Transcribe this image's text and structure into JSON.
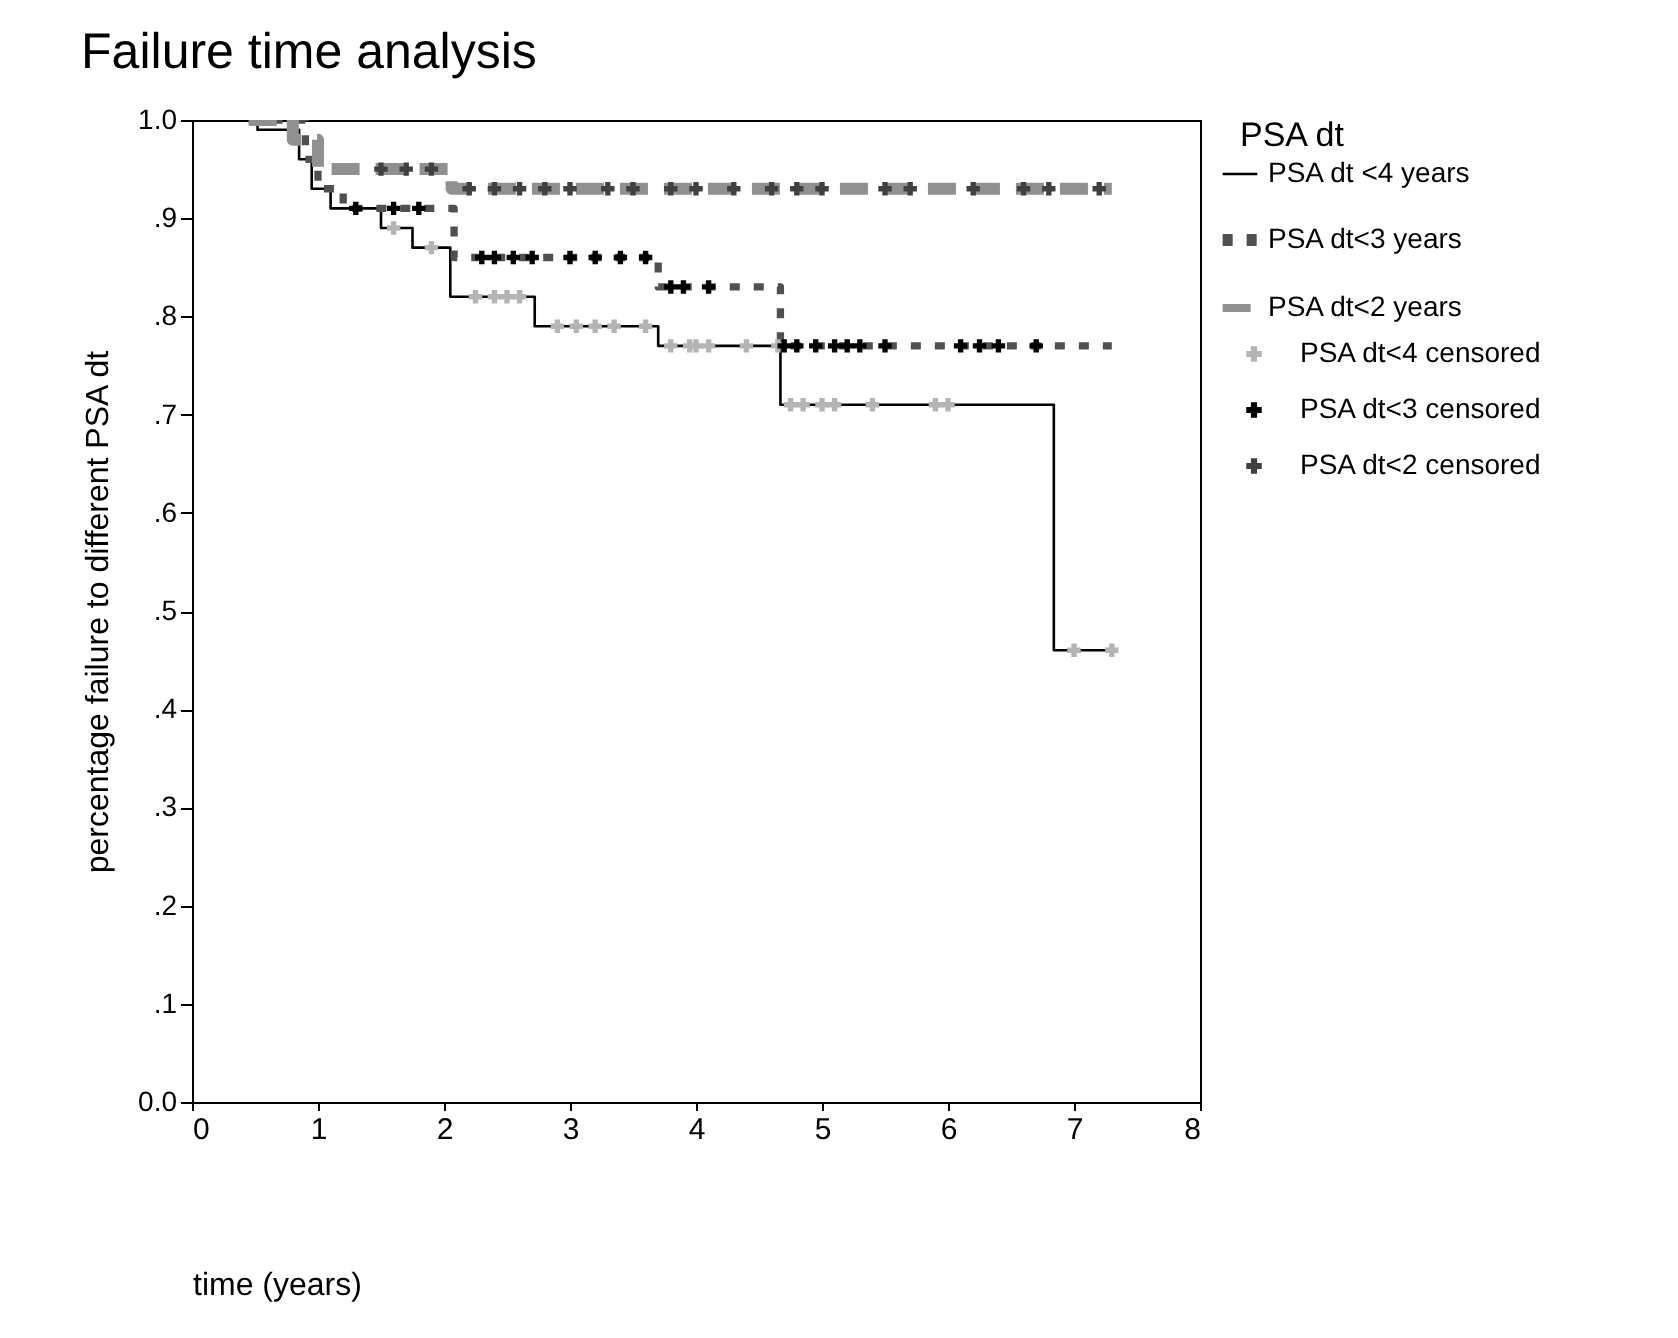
{
  "chart_data": {
    "type": "step",
    "title": "Failure time analysis",
    "xlabel": "time (years)",
    "ylabel": "percentage failure to different PSA dt",
    "legend_title": "PSA dt",
    "legend": "right",
    "grid": false,
    "xlim": [
      0,
      8
    ],
    "xticks": [
      0,
      1,
      2,
      3,
      4,
      5,
      6,
      7,
      8
    ],
    "ylim": [
      0,
      1
    ],
    "yticks": [
      {
        "value": 0,
        "label": "0.0"
      },
      {
        "value": 0.1,
        "label": ".1"
      },
      {
        "value": 0.2,
        "label": ".2"
      },
      {
        "value": 0.3,
        "label": ".3"
      },
      {
        "value": 0.4,
        "label": ".4"
      },
      {
        "value": 0.5,
        "label": ".5"
      },
      {
        "value": 0.6,
        "label": ".6"
      },
      {
        "value": 0.7,
        "label": ".7"
      },
      {
        "value": 0.8,
        "label": ".8"
      },
      {
        "value": 0.9,
        "label": ".9"
      },
      {
        "value": 1,
        "label": "1.0"
      }
    ],
    "series": [
      {
        "name": "PSA dt <4 years",
        "color": "#000000",
        "line_style": "solid",
        "x": [
          0.45,
          0.52,
          0.85,
          0.95,
          1.1,
          1.5,
          1.75,
          2.05,
          2.72,
          3.7,
          4.67,
          6.84,
          7.3
        ],
        "values": [
          1,
          0.99,
          0.96,
          0.93,
          0.91,
          0.89,
          0.87,
          0.82,
          0.79,
          0.77,
          0.71,
          0.46,
          0.46
        ]
      },
      {
        "name": "PSA dt<4 censored",
        "type": "scatter",
        "marker": "cross",
        "color": "#b4b4b4",
        "x": [
          1.6,
          1.9,
          2.25,
          2.4,
          2.5,
          2.6,
          2.9,
          3.05,
          3.2,
          3.35,
          3.6,
          3.8,
          3.95,
          4.0,
          4.1,
          4.4,
          4.65,
          4.75,
          4.85,
          5.0,
          5.1,
          5.4,
          5.9,
          6.0,
          7.0,
          7.3
        ],
        "values": [
          0.89,
          0.87,
          0.82,
          0.82,
          0.82,
          0.82,
          0.79,
          0.79,
          0.79,
          0.79,
          0.79,
          0.77,
          0.77,
          0.77,
          0.77,
          0.77,
          0.77,
          0.71,
          0.71,
          0.71,
          0.71,
          0.71,
          0.71,
          0.71,
          0.46,
          0.46
        ]
      },
      {
        "name": "PSA dt<3 years",
        "color": "#505050",
        "line_style": "dotted",
        "x": [
          0.45,
          0.9,
          1.0,
          1.2,
          2.08,
          3.7,
          4.67,
          7.3
        ],
        "values": [
          1,
          0.96,
          0.93,
          0.91,
          0.86,
          0.83,
          0.77,
          0.77
        ]
      },
      {
        "name": "PSA dt<3 censored",
        "type": "scatter",
        "marker": "cross",
        "color": "#000000",
        "x": [
          1.3,
          1.6,
          1.8,
          2.3,
          2.4,
          2.55,
          2.7,
          3.0,
          3.2,
          3.4,
          3.6,
          3.8,
          3.9,
          4.1,
          4.7,
          4.8,
          4.95,
          5.1,
          5.2,
          5.3,
          5.5,
          6.1,
          6.25,
          6.4,
          6.7
        ],
        "values": [
          0.91,
          0.91,
          0.91,
          0.86,
          0.86,
          0.86,
          0.86,
          0.86,
          0.86,
          0.86,
          0.86,
          0.83,
          0.83,
          0.83,
          0.77,
          0.77,
          0.77,
          0.77,
          0.77,
          0.77,
          0.77,
          0.77,
          0.77,
          0.77,
          0.77
        ]
      },
      {
        "name": "PSA dt<2 years",
        "color": "#909090",
        "line_style": "dashed",
        "x": [
          0.45,
          0.8,
          1.0,
          2.06,
          7.3
        ],
        "values": [
          1,
          0.98,
          0.95,
          0.93,
          0.93
        ]
      },
      {
        "name": "PSA dt<2 censored",
        "type": "scatter",
        "marker": "cross",
        "color": "#404040",
        "x": [
          1.5,
          1.7,
          1.9,
          2.2,
          2.4,
          2.6,
          2.8,
          3.0,
          3.3,
          3.5,
          3.8,
          4.0,
          4.3,
          4.6,
          4.8,
          5.0,
          5.5,
          5.7,
          6.2,
          6.6,
          6.8,
          7.2
        ],
        "values": [
          0.95,
          0.95,
          0.95,
          0.93,
          0.93,
          0.93,
          0.93,
          0.93,
          0.93,
          0.93,
          0.93,
          0.93,
          0.93,
          0.93,
          0.93,
          0.93,
          0.93,
          0.93,
          0.93,
          0.93,
          0.93,
          0.93
        ]
      }
    ]
  }
}
